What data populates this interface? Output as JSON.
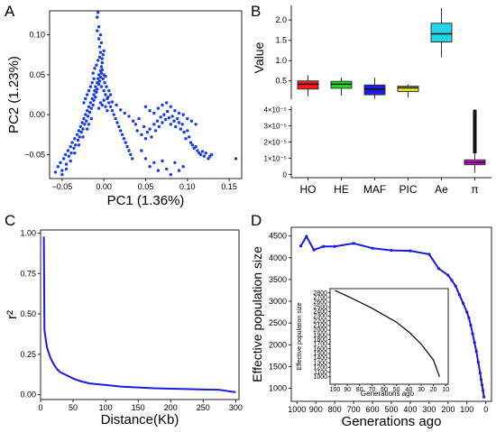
{
  "panels": {
    "a": "A",
    "b": "B",
    "c": "C",
    "d": "D"
  },
  "chart_data": [
    {
      "panel": "A",
      "type": "scatter",
      "xlabel": "PC1 (1.36%)",
      "ylabel": "PC2 (1.23%)",
      "xlim": [
        -0.065,
        0.165
      ],
      "ylim": [
        -0.08,
        0.13
      ],
      "xticks": [
        -0.05,
        0.0,
        0.05,
        0.1,
        0.15
      ],
      "xtick_labels": [
        "−0.05",
        "0.00",
        "0.05",
        "0.10",
        "0.15"
      ],
      "yticks": [
        -0.05,
        0.0,
        0.05,
        0.1
      ],
      "ytick_labels": [
        "−0.05",
        "0.00",
        "0.05",
        "0.10"
      ],
      "color": "#1a3fe0",
      "points": [
        [
          -0.058,
          -0.072
        ],
        [
          -0.055,
          -0.065
        ],
        [
          -0.052,
          -0.06
        ],
        [
          -0.05,
          -0.07
        ],
        [
          -0.048,
          -0.055
        ],
        [
          -0.046,
          -0.05
        ],
        [
          -0.045,
          -0.062
        ],
        [
          -0.043,
          -0.045
        ],
        [
          -0.042,
          -0.052
        ],
        [
          -0.04,
          -0.04
        ],
        [
          -0.039,
          -0.048
        ],
        [
          -0.038,
          -0.035
        ],
        [
          -0.036,
          -0.042
        ],
        [
          -0.035,
          -0.03
        ],
        [
          -0.034,
          -0.038
        ],
        [
          -0.032,
          -0.025
        ],
        [
          -0.031,
          -0.032
        ],
        [
          -0.03,
          -0.02
        ],
        [
          -0.029,
          -0.028
        ],
        [
          -0.028,
          -0.015
        ],
        [
          -0.027,
          -0.022
        ],
        [
          -0.026,
          -0.01
        ],
        [
          -0.025,
          -0.018
        ],
        [
          -0.024,
          -0.005
        ],
        [
          -0.023,
          -0.012
        ],
        [
          -0.022,
          0.0
        ],
        [
          -0.021,
          -0.008
        ],
        [
          -0.02,
          0.005
        ],
        [
          -0.019,
          -0.002
        ],
        [
          -0.018,
          0.01
        ],
        [
          -0.017,
          0.003
        ],
        [
          -0.016,
          0.015
        ],
        [
          -0.015,
          0.008
        ],
        [
          -0.014,
          0.02
        ],
        [
          -0.013,
          0.012
        ],
        [
          -0.012,
          0.025
        ],
        [
          -0.012,
          0.018
        ],
        [
          -0.011,
          0.03
        ],
        [
          -0.01,
          0.022
        ],
        [
          -0.01,
          0.035
        ],
        [
          -0.009,
          0.028
        ],
        [
          -0.008,
          0.04
        ],
        [
          -0.008,
          0.032
        ],
        [
          -0.007,
          0.045
        ],
        [
          -0.006,
          0.038
        ],
        [
          -0.006,
          0.05
        ],
        [
          -0.005,
          0.042
        ],
        [
          -0.004,
          0.055
        ],
        [
          -0.004,
          0.047
        ],
        [
          -0.003,
          0.06
        ],
        [
          -0.003,
          0.052
        ],
        [
          -0.002,
          0.065
        ],
        [
          -0.002,
          0.07
        ],
        [
          -0.001,
          0.075
        ],
        [
          0.0,
          0.08
        ],
        [
          -0.005,
          0.085
        ],
        [
          -0.003,
          0.09
        ],
        [
          -0.006,
          0.095
        ],
        [
          -0.004,
          0.1
        ],
        [
          -0.008,
          0.105
        ],
        [
          -0.006,
          0.11
        ],
        [
          -0.008,
          0.122
        ],
        [
          -0.007,
          0.128
        ],
        [
          -0.012,
          0.045
        ],
        [
          -0.014,
          0.04
        ],
        [
          -0.016,
          0.035
        ],
        [
          -0.018,
          0.03
        ],
        [
          -0.02,
          0.025
        ],
        [
          -0.022,
          0.02
        ],
        [
          -0.024,
          0.015
        ],
        [
          -0.003,
          0.035
        ],
        [
          0.0,
          0.03
        ],
        [
          0.002,
          0.025
        ],
        [
          0.004,
          0.02
        ],
        [
          0.006,
          0.015
        ],
        [
          0.008,
          0.01
        ],
        [
          0.01,
          0.005
        ],
        [
          0.012,
          0.0
        ],
        [
          0.014,
          -0.005
        ],
        [
          0.016,
          -0.01
        ],
        [
          0.018,
          -0.015
        ],
        [
          0.02,
          -0.02
        ],
        [
          0.022,
          -0.025
        ],
        [
          0.024,
          -0.03
        ],
        [
          0.026,
          -0.035
        ],
        [
          0.028,
          -0.04
        ],
        [
          0.03,
          -0.045
        ],
        [
          0.032,
          -0.05
        ],
        [
          0.034,
          -0.055
        ],
        [
          -0.002,
          0.012
        ],
        [
          0.0,
          0.018
        ],
        [
          0.002,
          0.01
        ],
        [
          0.004,
          0.005
        ],
        [
          -0.006,
          0.008
        ],
        [
          -0.004,
          0.015
        ],
        [
          0.001,
          0.04
        ],
        [
          -0.001,
          0.045
        ],
        [
          0.003,
          0.035
        ],
        [
          0.006,
          0.03
        ],
        [
          0.008,
          0.025
        ],
        [
          -0.015,
          -0.005
        ],
        [
          -0.018,
          -0.012
        ],
        [
          -0.02,
          -0.018
        ],
        [
          -0.025,
          -0.028
        ],
        [
          -0.03,
          -0.038
        ],
        [
          -0.035,
          -0.048
        ],
        [
          -0.04,
          -0.058
        ],
        [
          -0.045,
          -0.068
        ],
        [
          -0.05,
          -0.075
        ],
        [
          0.04,
          -0.02
        ],
        [
          0.045,
          -0.025
        ],
        [
          0.048,
          -0.015
        ],
        [
          0.05,
          -0.03
        ],
        [
          0.052,
          -0.022
        ],
        [
          0.055,
          -0.018
        ],
        [
          0.057,
          -0.028
        ],
        [
          0.06,
          -0.012
        ],
        [
          0.062,
          -0.02
        ],
        [
          0.064,
          -0.008
        ],
        [
          0.066,
          -0.015
        ],
        [
          0.068,
          -0.003
        ],
        [
          0.07,
          -0.01
        ],
        [
          0.072,
          0.0
        ],
        [
          0.074,
          -0.006
        ],
        [
          0.076,
          0.004
        ],
        [
          0.078,
          -0.004
        ],
        [
          0.08,
          -0.012
        ],
        [
          0.082,
          -0.002
        ],
        [
          0.084,
          -0.008
        ],
        [
          0.086,
          -0.015
        ],
        [
          0.088,
          -0.005
        ],
        [
          0.09,
          -0.01
        ],
        [
          0.092,
          -0.018
        ],
        [
          0.094,
          -0.012
        ],
        [
          0.096,
          -0.022
        ],
        [
          0.098,
          -0.03
        ],
        [
          0.1,
          -0.02
        ],
        [
          0.102,
          -0.028
        ],
        [
          0.104,
          -0.035
        ],
        [
          0.106,
          -0.038
        ],
        [
          0.108,
          -0.042
        ],
        [
          0.11,
          -0.04
        ],
        [
          0.112,
          -0.045
        ],
        [
          0.114,
          -0.048
        ],
        [
          0.116,
          -0.05
        ],
        [
          0.118,
          -0.046
        ],
        [
          0.12,
          -0.052
        ],
        [
          0.122,
          -0.048
        ],
        [
          0.125,
          -0.055
        ],
        [
          0.127,
          -0.052
        ],
        [
          0.129,
          -0.05
        ],
        [
          0.158,
          -0.055
        ],
        [
          0.05,
          0.01
        ],
        [
          0.055,
          0.005
        ],
        [
          0.06,
          0.002
        ],
        [
          0.065,
          0.008
        ],
        [
          0.07,
          0.012
        ],
        [
          0.075,
          0.015
        ],
        [
          0.08,
          0.01
        ],
        [
          0.085,
          0.005
        ],
        [
          0.09,
          0.002
        ],
        [
          0.095,
          0.0
        ],
        [
          0.1,
          -0.005
        ],
        [
          0.105,
          -0.008
        ],
        [
          0.11,
          -0.012
        ],
        [
          0.045,
          -0.045
        ],
        [
          0.05,
          -0.055
        ],
        [
          0.055,
          -0.065
        ],
        [
          0.06,
          -0.06
        ],
        [
          0.065,
          -0.07
        ],
        [
          0.07,
          -0.058
        ],
        [
          0.075,
          -0.068
        ],
        [
          0.08,
          -0.075
        ],
        [
          0.085,
          -0.06
        ],
        [
          0.09,
          -0.07
        ],
        [
          0.095,
          -0.065
        ],
        [
          0.035,
          -0.008
        ],
        [
          0.038,
          -0.012
        ],
        [
          0.042,
          -0.005
        ],
        [
          0.03,
          -0.002
        ],
        [
          0.025,
          0.002
        ],
        [
          0.02,
          0.006
        ],
        [
          0.015,
          0.012
        ],
        [
          0.01,
          0.016
        ],
        [
          0.005,
          0.022
        ],
        [
          0.0,
          0.05
        ],
        [
          -0.002,
          0.056
        ],
        [
          0.002,
          0.048
        ],
        [
          -0.009,
          0.062
        ],
        [
          -0.011,
          0.058
        ],
        [
          -0.013,
          0.052
        ],
        [
          -0.007,
          0.068
        ],
        [
          -0.005,
          0.072
        ],
        [
          -0.004,
          0.078
        ]
      ]
    },
    {
      "panel": "B",
      "type": "box",
      "ylabel": "Value",
      "categories": [
        "HO",
        "HE",
        "MAF",
        "PIC",
        "Ae",
        "π"
      ],
      "upper_ticks": [
        0.5,
        1.0,
        1.5,
        2.0
      ],
      "upper_tick_labels": [
        "0.5",
        "1.0",
        "1.5",
        "2.0"
      ],
      "lower_ticks": [
        0,
        1e-05,
        2e-05,
        3e-05,
        4e-05
      ],
      "lower_tick_labels": [
        "0",
        "1×10⁻⁵",
        "2×10⁻⁵",
        "3×10⁻⁵",
        "4×10⁻⁵"
      ],
      "boxes": [
        {
          "name": "HO",
          "color": "#ff1a1a",
          "scale": "upper",
          "whisker_low": 0.12,
          "q1": 0.3,
          "median": 0.42,
          "q3": 0.5,
          "whisker_high": 0.64
        },
        {
          "name": "HE",
          "color": "#1adf1a",
          "scale": "upper",
          "whisker_low": 0.14,
          "q1": 0.32,
          "median": 0.42,
          "q3": 0.49,
          "whisker_high": 0.58
        },
        {
          "name": "MAF",
          "color": "#1a1ae6",
          "scale": "upper",
          "whisker_low": 0.06,
          "q1": 0.16,
          "median": 0.3,
          "q3": 0.4,
          "whisker_high": 0.58
        },
        {
          "name": "PIC",
          "color": "#e6e61a",
          "scale": "upper",
          "whisker_low": 0.09,
          "q1": 0.24,
          "median": 0.33,
          "q3": 0.37,
          "whisker_high": 0.41
        },
        {
          "name": "Ae",
          "color": "#22d6e6",
          "scale": "upper",
          "whisker_low": 1.08,
          "q1": 1.46,
          "median": 1.66,
          "q3": 1.92,
          "whisker_high": 2.3
        },
        {
          "name": "π",
          "color": "#e010e0",
          "scale": "lower",
          "whisker_low": 1e-06,
          "q1": 6e-06,
          "median": 7.5e-06,
          "q3": 9e-06,
          "whisker_high": 1.3e-05,
          "outliers_to": 4e-05
        }
      ]
    },
    {
      "panel": "C",
      "type": "line",
      "xlabel": "Distance(Kb)",
      "ylabel": "r²",
      "xlim": [
        0,
        305
      ],
      "ylim": [
        -0.03,
        1.02
      ],
      "xticks": [
        0,
        50,
        100,
        150,
        200,
        250,
        300
      ],
      "yticks": [
        0.0,
        0.25,
        0.5,
        0.75,
        1.0
      ],
      "ytick_labels": [
        "0.00",
        "0.25",
        "0.50",
        "0.75",
        "1.00"
      ],
      "color": "#1a1ae6",
      "x": [
        5,
        6,
        8,
        10,
        15,
        20,
        25,
        30,
        40,
        50,
        60,
        75,
        100,
        125,
        150,
        175,
        200,
        225,
        250,
        275,
        300
      ],
      "y": [
        0.98,
        0.4,
        0.34,
        0.29,
        0.23,
        0.19,
        0.16,
        0.14,
        0.12,
        0.1,
        0.085,
        0.07,
        0.06,
        0.05,
        0.045,
        0.04,
        0.037,
        0.035,
        0.032,
        0.03,
        0.015
      ]
    },
    {
      "panel": "D",
      "type": "line",
      "xlabel": "Generations ago",
      "ylabel": "Effective population size",
      "xlim": [
        1030,
        -30
      ],
      "ylim": [
        700,
        4700
      ],
      "xticks": [
        1000,
        900,
        800,
        700,
        600,
        500,
        400,
        300,
        200,
        100,
        0
      ],
      "yticks": [
        1000,
        1500,
        2000,
        2500,
        3000,
        3500,
        4000,
        4500
      ],
      "color": "#1a1ae6",
      "x": [
        980,
        950,
        910,
        860,
        800,
        700,
        600,
        500,
        400,
        300,
        250,
        200,
        180,
        160,
        140,
        120,
        100,
        90,
        80,
        70,
        60,
        50,
        40,
        30,
        25,
        20,
        15,
        10
      ],
      "y": [
        4270,
        4490,
        4180,
        4260,
        4260,
        4330,
        4220,
        4170,
        4160,
        4080,
        3750,
        3600,
        3480,
        3350,
        3150,
        2950,
        2750,
        2620,
        2450,
        2250,
        2050,
        1850,
        1600,
        1350,
        1200,
        1080,
        950,
        800
      ]
    },
    {
      "panel": "D-inset",
      "type": "line",
      "xlabel": "Generations ago",
      "ylabel": "Effective population size",
      "xlim": [
        104,
        8
      ],
      "ylim": [
        840,
        2890
      ],
      "xticks": [
        100,
        90,
        80,
        70,
        60,
        50,
        40,
        30,
        20,
        10
      ],
      "yticks": [
        1000,
        1100,
        1200,
        1300,
        1400,
        1500,
        1600,
        1700,
        1800,
        1900,
        2000,
        2100,
        2200,
        2300,
        2400,
        2500,
        2600,
        2700,
        2800
      ],
      "color": "#000000",
      "x": [
        100,
        90,
        80,
        70,
        60,
        50,
        40,
        30,
        20,
        15
      ],
      "y": [
        2850,
        2730,
        2600,
        2470,
        2320,
        2170,
        1960,
        1700,
        1360,
        1000
      ]
    }
  ]
}
